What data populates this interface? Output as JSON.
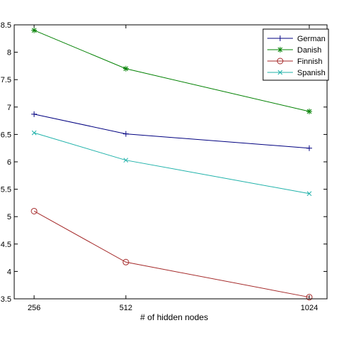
{
  "chart_data": {
    "type": "line",
    "title": "",
    "xlabel": "# of hidden nodes",
    "ylabel": "",
    "x": [
      256,
      512,
      1024
    ],
    "x_ticks": [
      "256",
      "512",
      "1024"
    ],
    "y_ticks": [
      "3.5",
      "4",
      "4.5",
      "5",
      "5.5",
      "6",
      "6.5",
      "7",
      "7.5",
      "8",
      "8.5"
    ],
    "ylim": [
      3.5,
      8.5
    ],
    "grid": false,
    "legend_position": "top-right",
    "series": [
      {
        "name": "German",
        "values": [
          6.87,
          6.51,
          6.25
        ],
        "color": "#000080",
        "marker": "plus"
      },
      {
        "name": "Danish",
        "values": [
          8.4,
          7.7,
          6.92
        ],
        "color": "#008000",
        "marker": "star"
      },
      {
        "name": "Finnish",
        "values": [
          5.1,
          4.17,
          3.53
        ],
        "color": "#a52a2a",
        "marker": "circle"
      },
      {
        "name": "Spanish",
        "values": [
          6.53,
          6.03,
          5.42
        ],
        "color": "#20b2aa",
        "marker": "x"
      }
    ]
  }
}
